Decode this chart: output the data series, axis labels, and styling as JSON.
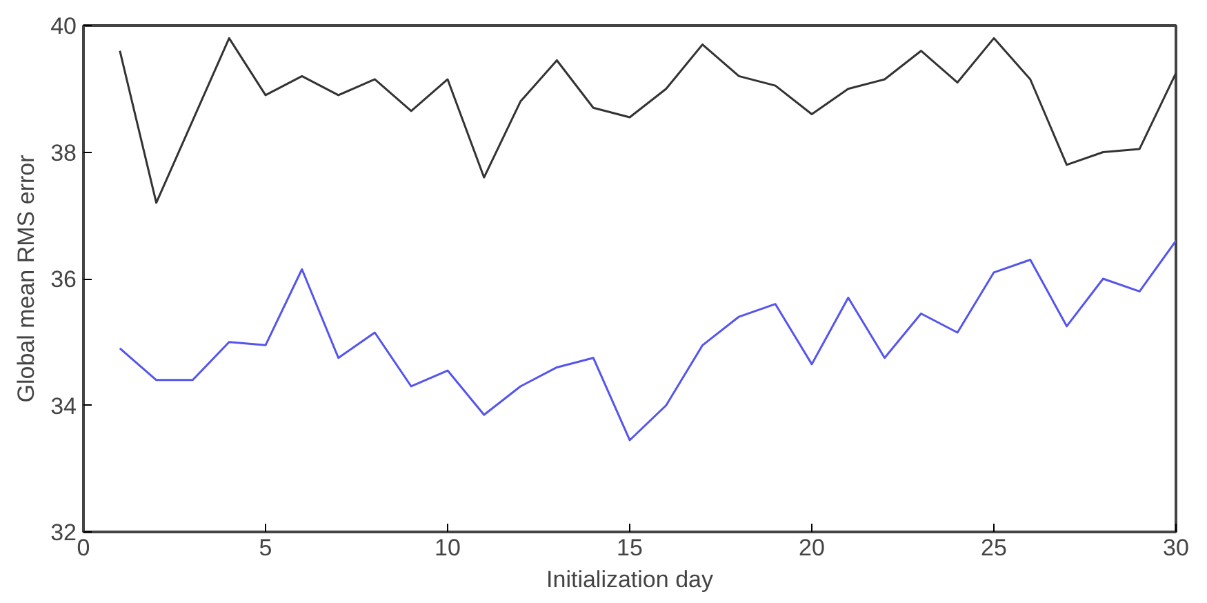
{
  "chart_data": {
    "type": "line",
    "xlabel": "Initialization day",
    "ylabel": "Global mean RMS error",
    "x": [
      1,
      2,
      3,
      4,
      5,
      6,
      7,
      8,
      9,
      10,
      11,
      12,
      13,
      14,
      15,
      16,
      17,
      18,
      19,
      20,
      21,
      22,
      23,
      24,
      25,
      26,
      27,
      28,
      29,
      30
    ],
    "series": [
      {
        "color": "#333333",
        "values": [
          39.6,
          37.2,
          38.5,
          39.8,
          38.9,
          39.2,
          38.9,
          39.15,
          38.65,
          39.15,
          37.6,
          38.8,
          39.45,
          38.7,
          38.55,
          39.0,
          39.7,
          39.2,
          39.05,
          38.6,
          39.0,
          39.15,
          39.6,
          39.1,
          39.8,
          39.15,
          37.8,
          38.0,
          38.05,
          39.25
        ]
      },
      {
        "color": "#5555ee",
        "values": [
          34.9,
          34.4,
          34.4,
          35.0,
          34.95,
          36.15,
          34.75,
          35.15,
          34.3,
          34.55,
          33.85,
          34.3,
          34.6,
          34.75,
          33.45,
          34.0,
          34.95,
          35.4,
          35.6,
          34.65,
          35.7,
          34.75,
          35.45,
          35.15,
          36.1,
          36.3,
          35.25,
          36.0,
          35.8,
          36.6
        ]
      }
    ],
    "xlim": [
      0,
      30
    ],
    "ylim": [
      32,
      40
    ],
    "xticks": [
      0,
      5,
      10,
      15,
      20,
      25,
      30
    ],
    "yticks": [
      32,
      34,
      36,
      38,
      40
    ],
    "grid": false,
    "line_style": "solid"
  }
}
